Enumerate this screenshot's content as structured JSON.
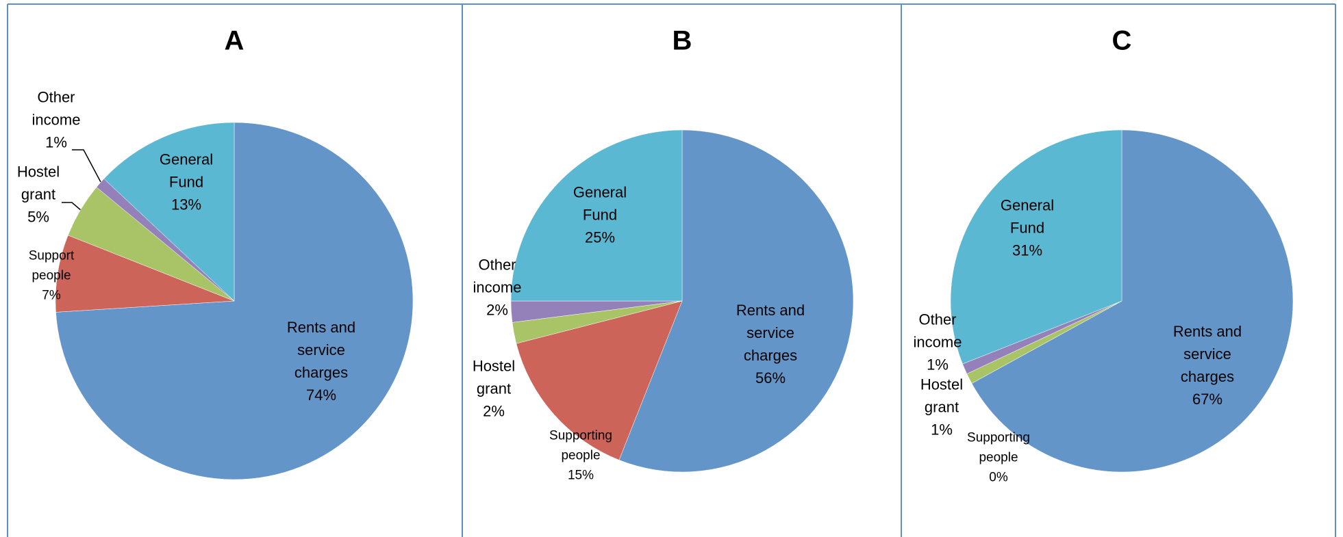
{
  "chart_data": [
    {
      "type": "pie",
      "title": "A",
      "categories": [
        "Rents and service charges",
        "Support people",
        "Hostel grant",
        "Other income",
        "General Fund"
      ],
      "values": [
        74,
        7,
        5,
        1,
        13
      ],
      "value_labels": [
        "74%",
        "7%",
        "5%",
        "1%",
        "13%"
      ],
      "colors": [
        "#6495c9",
        "#cd645a",
        "#a9c467",
        "#9581b9",
        "#5bb8d2"
      ]
    },
    {
      "type": "pie",
      "title": "B",
      "categories": [
        "Rents and service charges",
        "Supporting people",
        "Hostel grant",
        "Other income",
        "General Fund"
      ],
      "values": [
        56,
        15,
        2,
        2,
        25
      ],
      "value_labels": [
        "56%",
        "15%",
        "2%",
        "2%",
        "25%"
      ],
      "colors": [
        "#6495c9",
        "#cd645a",
        "#a9c467",
        "#9581b9",
        "#5bb8d2"
      ]
    },
    {
      "type": "pie",
      "title": "C",
      "categories": [
        "Rents and service charges",
        "Supporting people",
        "Hostel grant",
        "Other income",
        "General Fund"
      ],
      "values": [
        67,
        0,
        1,
        1,
        31
      ],
      "value_labels": [
        "67%",
        "0%",
        "1%",
        "1%",
        "31%"
      ],
      "colors": [
        "#6495c9",
        "#cd645a",
        "#a9c467",
        "#9581b9",
        "#5bb8d2"
      ]
    }
  ]
}
